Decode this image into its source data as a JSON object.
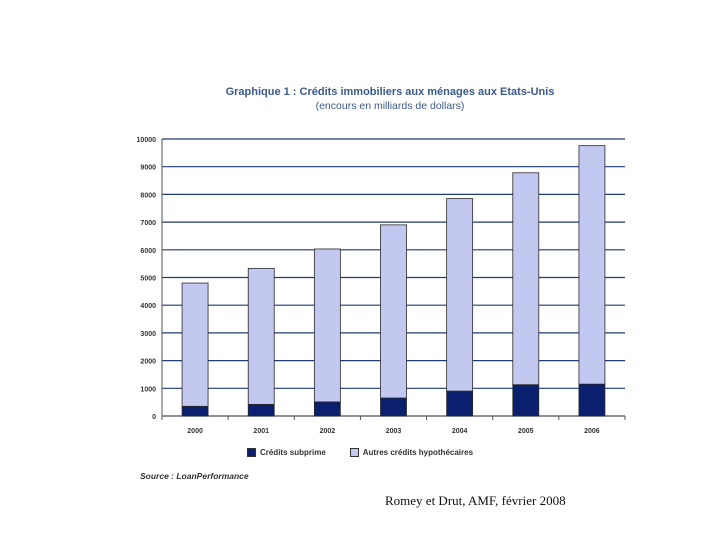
{
  "chart_data": {
    "type": "bar",
    "stacked": true,
    "title": "Graphique 1 : Crédits immobiliers aux ménages aux Etats-Unis",
    "subtitle": "(encours en milliards de dollars)",
    "categories": [
      "2000",
      "2001",
      "2002",
      "2003",
      "2004",
      "2005",
      "2006"
    ],
    "series": [
      {
        "name": "Crédits subprime",
        "values": [
          350,
          420,
          510,
          650,
          900,
          1130,
          1150
        ],
        "color": "#0a1f6e"
      },
      {
        "name": "Autres crédits hypothécaires",
        "values": [
          4450,
          4910,
          5520,
          6250,
          6950,
          7650,
          8610
        ],
        "color": "#c3c8f0"
      }
    ],
    "ylim": [
      0,
      10000
    ],
    "yticks": [
      "0",
      "1000",
      "2000",
      "3000",
      "4000",
      "5000",
      "6000",
      "7000",
      "8000",
      "9000",
      "10000"
    ],
    "grid": true,
    "legend_position": "bottom",
    "xlabel": "",
    "ylabel": ""
  },
  "source": "Source : LoanPerformance",
  "citation": "Romey et Drut, AMF, février 2008"
}
